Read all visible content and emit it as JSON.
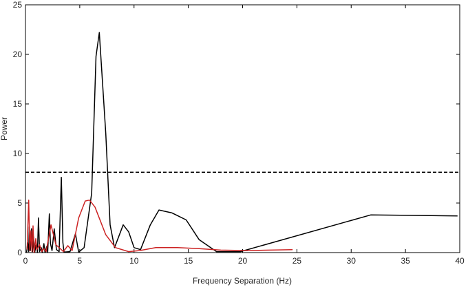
{
  "chart_data": {
    "type": "line",
    "xlabel": "Frequency Separation (Hz)",
    "ylabel": "Power",
    "xlim": [
      0,
      40
    ],
    "ylim": [
      0,
      25
    ],
    "xticks": [
      0,
      5,
      10,
      15,
      20,
      25,
      30,
      35,
      40
    ],
    "yticks": [
      0,
      5,
      10,
      15,
      20,
      25
    ],
    "grid": false,
    "legend": "none",
    "threshold": {
      "y": 8.1,
      "style": "dashed",
      "color": "#000000"
    },
    "series": [
      {
        "color": "#000000",
        "points": [
          [
            0.1,
            0.0
          ],
          [
            0.2,
            1.0
          ],
          [
            0.3,
            0.1
          ],
          [
            0.35,
            2.6
          ],
          [
            0.45,
            0.2
          ],
          [
            0.55,
            2.4
          ],
          [
            0.65,
            0.1
          ],
          [
            0.75,
            1.6
          ],
          [
            0.85,
            0.0
          ],
          [
            1.0,
            0.9
          ],
          [
            1.1,
            0.0
          ],
          [
            1.2,
            3.5
          ],
          [
            1.3,
            0.1
          ],
          [
            1.45,
            0.5
          ],
          [
            1.55,
            0.0
          ],
          [
            1.7,
            0.9
          ],
          [
            1.8,
            0.0
          ],
          [
            1.95,
            0.6
          ],
          [
            2.05,
            0.0
          ],
          [
            2.2,
            3.9
          ],
          [
            2.3,
            0.9
          ],
          [
            2.45,
            0.2
          ],
          [
            2.65,
            2.4
          ],
          [
            2.85,
            0.3
          ],
          [
            3.1,
            0.1
          ],
          [
            3.3,
            7.6
          ],
          [
            3.45,
            1.0
          ],
          [
            3.55,
            0.05
          ],
          [
            4.1,
            0.1
          ],
          [
            4.6,
            1.9
          ],
          [
            4.9,
            0.05
          ],
          [
            5.4,
            0.5
          ],
          [
            6.1,
            6.0
          ],
          [
            6.5,
            19.8
          ],
          [
            6.8,
            22.2
          ],
          [
            7.4,
            12.0
          ],
          [
            7.8,
            2.8
          ],
          [
            8.2,
            0.5
          ],
          [
            9.0,
            2.8
          ],
          [
            9.5,
            2.1
          ],
          [
            10.0,
            0.5
          ],
          [
            10.6,
            0.3
          ],
          [
            11.5,
            2.8
          ],
          [
            12.3,
            4.3
          ],
          [
            13.5,
            4.0
          ],
          [
            14.8,
            3.3
          ],
          [
            16.0,
            1.3
          ],
          [
            17.6,
            0.1
          ],
          [
            19.8,
            0.1
          ],
          [
            31.8,
            3.8
          ],
          [
            39.8,
            3.7
          ]
        ]
      },
      {
        "color": "#cc2222",
        "points": [
          [
            0.15,
            0.3
          ],
          [
            0.3,
            5.3
          ],
          [
            0.4,
            0.2
          ],
          [
            0.5,
            2.2
          ],
          [
            0.6,
            0.1
          ],
          [
            0.7,
            2.7
          ],
          [
            0.8,
            0.0
          ],
          [
            0.95,
            1.4
          ],
          [
            1.05,
            0.3
          ],
          [
            1.3,
            0.8
          ],
          [
            1.5,
            0.1
          ],
          [
            1.7,
            0.4
          ],
          [
            1.9,
            0.1
          ],
          [
            2.35,
            2.8
          ],
          [
            2.8,
            0.8
          ],
          [
            3.5,
            0.1
          ],
          [
            3.9,
            0.7
          ],
          [
            4.3,
            0.2
          ],
          [
            4.9,
            3.5
          ],
          [
            5.5,
            5.2
          ],
          [
            5.9,
            5.3
          ],
          [
            6.4,
            4.6
          ],
          [
            7.4,
            1.8
          ],
          [
            8.3,
            0.5
          ],
          [
            9.5,
            0.1
          ],
          [
            10.5,
            0.2
          ],
          [
            12.0,
            0.5
          ],
          [
            14.0,
            0.5
          ],
          [
            16.0,
            0.4
          ],
          [
            18.0,
            0.25
          ],
          [
            20.5,
            0.2
          ],
          [
            22.5,
            0.25
          ],
          [
            24.6,
            0.3
          ]
        ]
      }
    ]
  }
}
